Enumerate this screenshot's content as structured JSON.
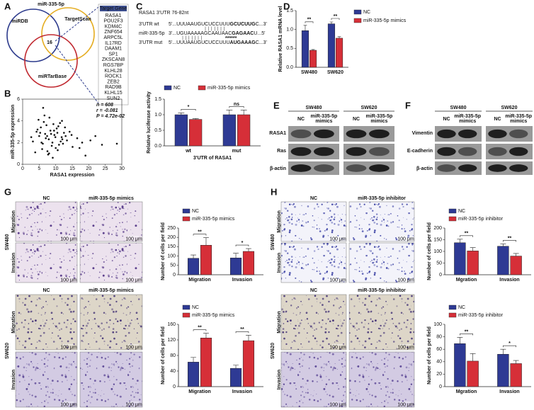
{
  "panel_labels": [
    "A",
    "B",
    "C",
    "D",
    "E",
    "F",
    "G",
    "H"
  ],
  "venn": {
    "title": "miR-335-5p",
    "sets": [
      "miRDB",
      "TargetScan",
      "miRTarBase"
    ],
    "intersection": "16",
    "gene_header": "Target Gene",
    "genes": [
      "RASA1",
      "POU2F3",
      "KDM4C",
      "ZNF654",
      "ARPC5L",
      "IL17RD",
      "DAAM1",
      "SP1",
      "ZKSCAN8",
      "RGS7BP",
      "KLHL28",
      "ROCK1",
      "ZEB2",
      "RAD9B",
      "KLHL15",
      "SUN2"
    ]
  },
  "sequence": {
    "title": "RASA1 3'UTR 76-82nt",
    "rows": [
      {
        "label": "3'UTR wt",
        "pre": "5'...UUUAAUGUCUCCUUU",
        "bold": "GCUCUUG",
        "post": "C...3'"
      },
      {
        "label": "miR-335-5p",
        "pre": "3'...UGUAAAAAGCAAUAAC",
        "bold": "GAGAAC",
        "post": "U...5'"
      },
      {
        "label": "3'UTR mut",
        "pre": "5'...UUUAAUGUCUCCUUU",
        "bold": "AUGAAAG",
        "post": "C...3'"
      }
    ],
    "mutation_marks": "******"
  },
  "blots": [
    {
      "cell_lines": [
        "SW480",
        "SW620"
      ],
      "control_label": "NC",
      "treated_label": [
        "miR-335-5p",
        "mimics"
      ],
      "rows": [
        "RASA1",
        "Ras",
        "β-actin"
      ]
    },
    {
      "cell_lines": [
        "SW480",
        "SW620"
      ],
      "control_label": "NC",
      "treated_label": [
        "miR-335-5p",
        "mimics"
      ],
      "rows": [
        "Vimentin",
        "E-cadherin",
        "β-actin"
      ]
    }
  ],
  "micrographs": [
    {
      "columns": [
        "NC",
        "miR-335-5p mimics"
      ],
      "rows": [
        "Migration",
        "Invasion"
      ],
      "cell_lines": [
        "SW480",
        "SW620"
      ]
    },
    {
      "columns": [
        "NC",
        "miR-335-5p inhibitor"
      ],
      "rows": [
        "Migration",
        "Invasion"
      ],
      "cell_lines": [
        "SW480",
        "SW620"
      ]
    }
  ],
  "scale_bar": "100 μm",
  "chart_data": [
    {
      "type": "scatter",
      "xlabel": "RASA1 expression",
      "ylabel": "miR-335-5p expression",
      "annotations": [
        "n = 608",
        "r = -0.081",
        "P = 4.72e-02"
      ],
      "xlim": [
        0,
        30
      ],
      "xticks": [
        0,
        5,
        10,
        15,
        20,
        25,
        30
      ],
      "ylim": [
        0,
        6
      ],
      "yticks": [
        0,
        2,
        4,
        6
      ],
      "color": "#111111",
      "x": [
        3.1,
        4.2,
        5.0,
        5.5,
        6.1,
        6.8,
        7.2,
        7.9,
        8.4,
        9.0,
        9.6,
        10.3,
        11.0,
        11.8,
        12.5,
        13.4,
        14.2,
        15.1,
        16.5,
        18.0,
        4.8,
        5.9,
        6.4,
        7.5,
        8.1,
        8.8,
        9.3,
        10.0,
        10.8,
        11.5,
        12.2,
        13.0,
        3.8,
        4.5,
        5.3,
        6.6,
        7.0,
        7.7,
        8.6,
        9.9,
        10.6,
        11.3,
        12.8,
        14.8,
        17.2,
        20.5,
        24.0,
        2.6,
        6.2,
        8.0,
        9.5,
        5.7,
        7.4,
        10.5,
        12.0,
        19.0,
        22.0,
        28.5,
        9.1,
        11.9
      ],
      "y": [
        2.1,
        3.0,
        2.6,
        3.4,
        1.9,
        2.8,
        3.6,
        2.3,
        3.1,
        2.0,
        2.7,
        3.3,
        1.8,
        2.5,
        2.9,
        2.2,
        3.0,
        1.6,
        2.4,
        2.0,
        4.1,
        1.4,
        3.9,
        1.2,
        4.3,
        1.7,
        3.7,
        1.5,
        3.5,
        2.1,
        1.9,
        2.6,
        1.1,
        3.2,
        2.9,
        4.5,
        2.4,
        0.9,
        2.8,
        2.5,
        1.3,
        3.8,
        3.4,
        2.7,
        1.5,
        2.2,
        1.8,
        2.5,
        5.2,
        1.0,
        3.1,
        2.0,
        2.6,
        2.9,
        2.3,
        0.8,
        2.6,
        1.9,
        0.6,
        4.0
      ]
    },
    {
      "type": "bar",
      "ylabel": "Relative luciferase activity",
      "xlabel": "3'UTR of RASA1",
      "legend": "top",
      "categories": [
        "wt",
        "mut"
      ],
      "series": [
        {
          "name": "NC",
          "color": "#2e3a94",
          "values": [
            1.0,
            1.0
          ],
          "errors": [
            0.06,
            0.15
          ]
        },
        {
          "name": "miR-335-5p mimics",
          "color": "#d62f38",
          "values": [
            0.85,
            1.0
          ],
          "errors": [
            0.03,
            0.15
          ]
        }
      ],
      "significance": [
        "*",
        "ns"
      ],
      "ylim": [
        0,
        1.5
      ],
      "yticks": [
        {
          "value": 0,
          "label": "0.0"
        },
        {
          "value": 0.5,
          "label": "0.5"
        },
        {
          "value": 1,
          "label": "1.0"
        },
        {
          "value": 1.5,
          "label": "1.5"
        }
      ]
    },
    {
      "type": "bar",
      "ylabel": "Relative RASA1 mRNA level",
      "legend": "right",
      "categories": [
        "SW480",
        "SW620"
      ],
      "series": [
        {
          "name": "NC",
          "color": "#2e3a94",
          "values": [
            0.97,
            1.15
          ],
          "errors": [
            0.14,
            0.05
          ]
        },
        {
          "name": "miR-335-5p mimics",
          "color": "#d62f38",
          "values": [
            0.45,
            0.77
          ],
          "errors": [
            0.02,
            0.04
          ]
        }
      ],
      "significance": [
        "**",
        "**"
      ],
      "ylim": [
        0,
        1.5
      ],
      "yticks": [
        {
          "value": 0,
          "label": "0.0"
        },
        {
          "value": 0.5,
          "label": "0.5"
        },
        {
          "value": 1,
          "label": "1.0"
        },
        {
          "value": 1.5,
          "label": "1.5"
        }
      ]
    },
    {
      "type": "bar",
      "ylabel": "Number of cells per field",
      "legend": "top-left",
      "categories": [
        "Migration",
        "Invasion"
      ],
      "series": [
        {
          "name": "NC",
          "color": "#2e3a94",
          "values": [
            88,
            90
          ],
          "errors": [
            18,
            25
          ]
        },
        {
          "name": "miR-335-5p mimics",
          "color": "#d62f38",
          "values": [
            158,
            125
          ],
          "errors": [
            40,
            15
          ]
        }
      ],
      "significance": [
        "**",
        "*"
      ],
      "ylim": [
        0,
        250
      ],
      "yticks": [
        0,
        50,
        100,
        150,
        200,
        250
      ]
    },
    {
      "type": "bar",
      "ylabel": "Number of cells per field",
      "legend": "top-left",
      "categories": [
        "Migration",
        "Invasion"
      ],
      "series": [
        {
          "name": "NC",
          "color": "#2e3a94",
          "values": [
            63,
            47
          ],
          "errors": [
            12,
            8
          ]
        },
        {
          "name": "miR-335-5p mimics",
          "color": "#d62f38",
          "values": [
            125,
            118
          ],
          "errors": [
            12,
            14
          ]
        }
      ],
      "significance": [
        "**",
        "**"
      ],
      "ylim": [
        0,
        160
      ],
      "yticks": [
        0,
        40,
        80,
        120,
        160
      ]
    },
    {
      "type": "bar",
      "ylabel": "Number of cells per field",
      "legend": "top-left",
      "categories": [
        "Mgration",
        "Invasion"
      ],
      "series": [
        {
          "name": "NC",
          "color": "#2e3a94",
          "values": [
            137,
            122
          ],
          "errors": [
            15,
            10
          ]
        },
        {
          "name": "miR-335-5p inhibitor",
          "color": "#d62f38",
          "values": [
            102,
            80
          ],
          "errors": [
            14,
            11
          ]
        }
      ],
      "significance": [
        "**",
        "**"
      ],
      "ylim": [
        0,
        200
      ],
      "yticks": [
        0,
        50,
        100,
        150,
        200
      ]
    },
    {
      "type": "bar",
      "ylabel": "Number of cells per field",
      "legend": "top-left",
      "categories": [
        "Mgration",
        "Invasion"
      ],
      "series": [
        {
          "name": "NC",
          "color": "#2e3a94",
          "values": [
            69,
            52
          ],
          "errors": [
            10,
            8
          ]
        },
        {
          "name": "miR-335-5p inhibitor",
          "color": "#d62f38",
          "values": [
            41,
            37
          ],
          "errors": [
            12,
            5
          ]
        }
      ],
      "significance": [
        "**",
        "*"
      ],
      "ylim": [
        0,
        100
      ],
      "yticks": [
        0,
        20,
        40,
        60,
        80,
        100
      ]
    }
  ]
}
